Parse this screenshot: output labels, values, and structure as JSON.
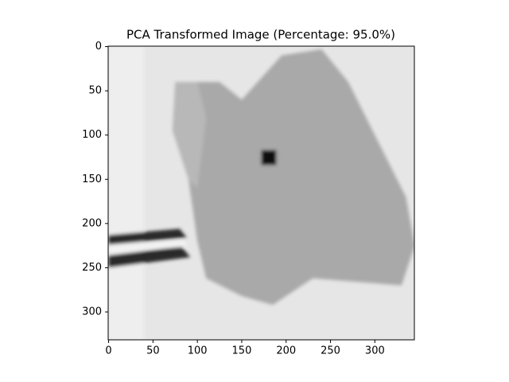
{
  "chart_data": {
    "type": "image",
    "title": "PCA Transformed Image (Percentage: 95.0%)",
    "xlim": [
      -0.5,
      344.5
    ],
    "ylim": [
      331.5,
      -0.5
    ],
    "xticks": [
      0,
      50,
      100,
      150,
      200,
      250,
      300
    ],
    "yticks": [
      0,
      50,
      100,
      150,
      200,
      250,
      300
    ],
    "cmap": "gray"
  }
}
